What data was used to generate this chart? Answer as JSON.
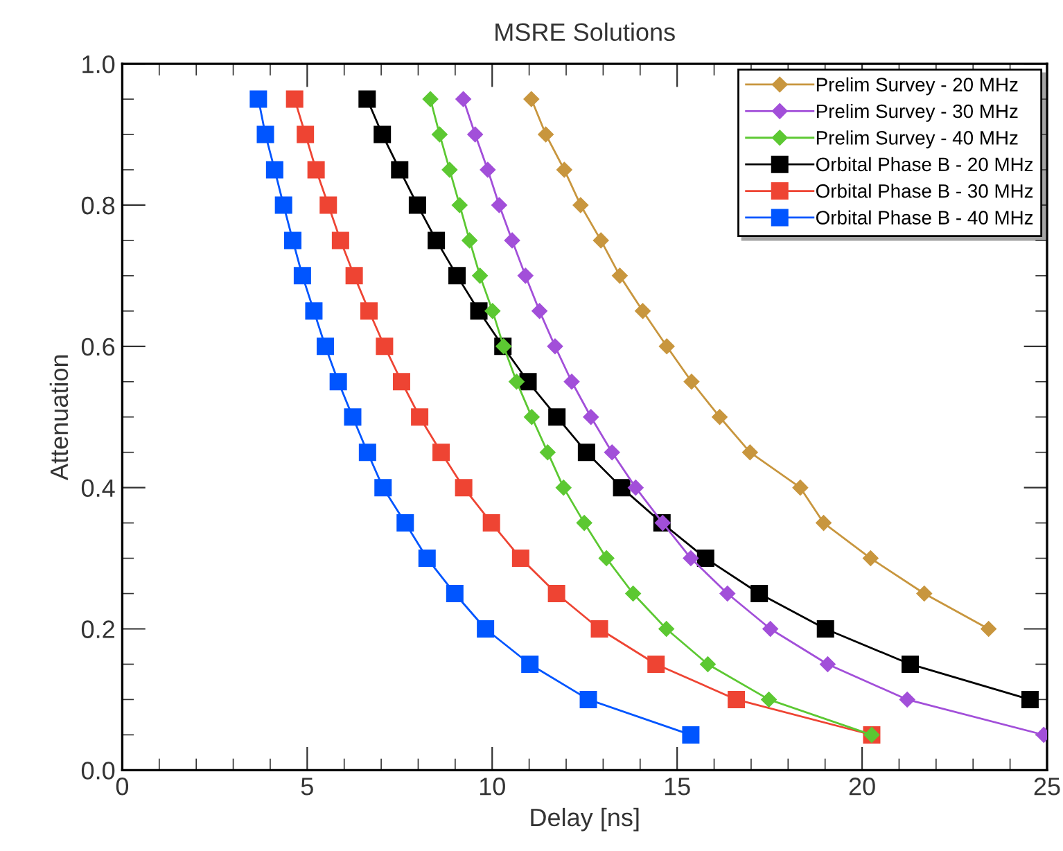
{
  "chart_data": {
    "type": "line",
    "title": "MSRE Solutions",
    "xlabel": "Delay [ns]",
    "ylabel": "Attenuation",
    "xlim": [
      0,
      25
    ],
    "xticks": [
      0,
      5,
      10,
      15,
      20,
      25
    ],
    "ylim": [
      0,
      1.0
    ],
    "yticks": [
      {
        "value": 0,
        "label": "0.0"
      },
      {
        "value": 0.2,
        "label": "0.2"
      },
      {
        "value": 0.4,
        "label": "0.4"
      },
      {
        "value": 0.6,
        "label": "0.6"
      },
      {
        "value": 0.8,
        "label": "0.8"
      },
      {
        "value": 1.0,
        "label": "1.0"
      }
    ],
    "grid": false,
    "legend": "top right",
    "line_style": "solid",
    "series": [
      {
        "name": "Prelim Survey - 20 MHz",
        "color": "#c8963e",
        "marker": "diamond",
        "x": [
          11.06,
          11.45,
          11.95,
          12.39,
          12.94,
          13.45,
          14.07,
          14.72,
          15.39,
          16.15,
          16.97,
          18.33,
          18.96,
          20.23,
          21.68,
          23.42
        ],
        "values": [
          0.95,
          0.9,
          0.85,
          0.8,
          0.75,
          0.7,
          0.65,
          0.6,
          0.55,
          0.5,
          0.45,
          0.4,
          0.35,
          0.3,
          0.25,
          0.2
        ]
      },
      {
        "name": "Prelim Survey - 30 MHz",
        "color": "#a24fd9",
        "marker": "diamond",
        "x": [
          9.22,
          9.54,
          9.88,
          10.19,
          10.54,
          10.9,
          11.28,
          11.7,
          12.15,
          12.67,
          13.24,
          13.88,
          14.61,
          15.37,
          16.36,
          17.52,
          19.07,
          21.22,
          24.91
        ],
        "values": [
          0.95,
          0.9,
          0.85,
          0.8,
          0.75,
          0.7,
          0.65,
          0.6,
          0.55,
          0.5,
          0.45,
          0.4,
          0.35,
          0.3,
          0.25,
          0.2,
          0.15,
          0.1,
          0.05
        ]
      },
      {
        "name": "Prelim Survey - 40 MHz",
        "color": "#5cc832",
        "marker": "diamond",
        "x": [
          8.33,
          8.58,
          8.85,
          9.12,
          9.39,
          9.67,
          10.01,
          10.31,
          10.66,
          11.07,
          11.5,
          11.93,
          12.49,
          13.09,
          13.81,
          14.71,
          15.83,
          17.48,
          20.26
        ],
        "values": [
          0.95,
          0.9,
          0.85,
          0.8,
          0.75,
          0.7,
          0.65,
          0.6,
          0.55,
          0.5,
          0.45,
          0.4,
          0.35,
          0.3,
          0.25,
          0.2,
          0.15,
          0.1,
          0.05
        ]
      },
      {
        "name": "Orbital Phase B - 20 MHz",
        "color": "#000000",
        "marker": "square",
        "x": [
          6.62,
          7.03,
          7.5,
          7.98,
          8.49,
          9.05,
          9.64,
          10.29,
          10.97,
          11.75,
          12.55,
          13.5,
          14.59,
          15.77,
          17.22,
          19.01,
          21.3,
          24.54
        ],
        "values": [
          0.95,
          0.9,
          0.85,
          0.8,
          0.75,
          0.7,
          0.65,
          0.6,
          0.55,
          0.5,
          0.45,
          0.4,
          0.35,
          0.3,
          0.25,
          0.2,
          0.15,
          0.1
        ]
      },
      {
        "name": "Orbital Phase B - 30 MHz",
        "color": "#ee4433",
        "marker": "square",
        "x": [
          4.66,
          4.95,
          5.24,
          5.57,
          5.9,
          6.27,
          6.67,
          7.09,
          7.55,
          8.04,
          8.62,
          9.23,
          9.98,
          10.77,
          11.74,
          12.9,
          14.43,
          16.6,
          20.26
        ],
        "values": [
          0.95,
          0.9,
          0.85,
          0.8,
          0.75,
          0.7,
          0.65,
          0.6,
          0.55,
          0.5,
          0.45,
          0.4,
          0.35,
          0.3,
          0.25,
          0.2,
          0.15,
          0.1,
          0.05
        ]
      },
      {
        "name": "Orbital Phase B - 40 MHz",
        "color": "#0055ff",
        "marker": "square",
        "x": [
          3.68,
          3.87,
          4.12,
          4.36,
          4.61,
          4.87,
          5.18,
          5.49,
          5.84,
          6.23,
          6.63,
          7.05,
          7.65,
          8.24,
          8.99,
          9.82,
          11.02,
          12.6,
          15.37
        ],
        "values": [
          0.95,
          0.9,
          0.85,
          0.8,
          0.75,
          0.7,
          0.65,
          0.6,
          0.55,
          0.5,
          0.45,
          0.4,
          0.35,
          0.3,
          0.25,
          0.2,
          0.15,
          0.1,
          0.05
        ]
      }
    ]
  }
}
